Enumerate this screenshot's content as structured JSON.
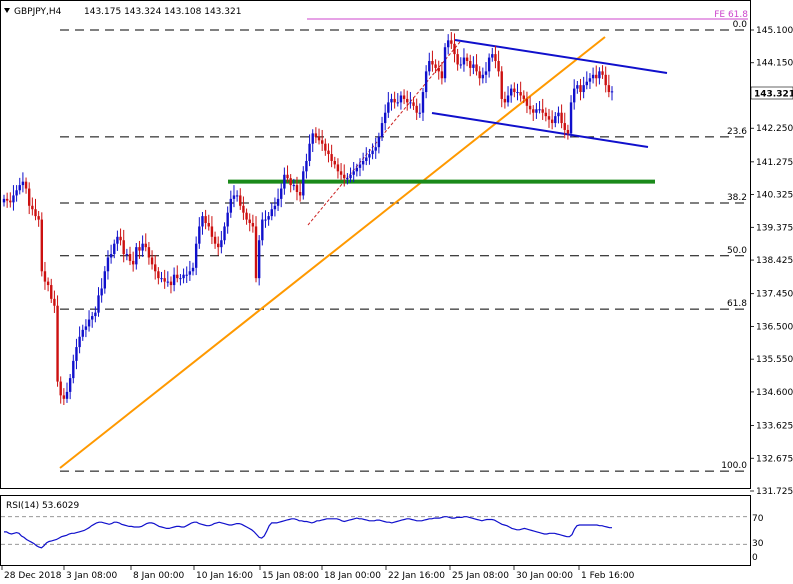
{
  "header": {
    "symbol": "GBPJPY,H4",
    "ohlc": "143.175 143.324 143.108 143.321"
  },
  "price_label": "143.321",
  "rsi": {
    "label": "RSI(14) 53.6029",
    "levels": [
      "70",
      "30",
      "0"
    ],
    "values": [
      48,
      48,
      46,
      45,
      46,
      47,
      46,
      42,
      40,
      37,
      35,
      33,
      31,
      28,
      26,
      25,
      28,
      32,
      34,
      35,
      36,
      37,
      39,
      41,
      42,
      43,
      45,
      46,
      46,
      47,
      48,
      49,
      50,
      52,
      54,
      57,
      59,
      61,
      62,
      62,
      61,
      60,
      59,
      60,
      62,
      62,
      61,
      59,
      58,
      57,
      56,
      56,
      55,
      55,
      55,
      56,
      58,
      60,
      61,
      61,
      60,
      58,
      56,
      55,
      54,
      53,
      53,
      54,
      55,
      56,
      56,
      55,
      55,
      57,
      59,
      61,
      62,
      62,
      60,
      59,
      58,
      57,
      57,
      58,
      60,
      61,
      62,
      61,
      60,
      59,
      58,
      58,
      59,
      60,
      60,
      59,
      57,
      55,
      53,
      51,
      48,
      44,
      40,
      39,
      42,
      49,
      57,
      61,
      61,
      61,
      62,
      63,
      64,
      65,
      66,
      67,
      67,
      66,
      64,
      64,
      63,
      63,
      62,
      61,
      62,
      64,
      64,
      65,
      66,
      67,
      67,
      67,
      67,
      67,
      66,
      64,
      63,
      64,
      65,
      66,
      67,
      68,
      67,
      67,
      66,
      65,
      64,
      64,
      64,
      65,
      65,
      64,
      63,
      62,
      62,
      61,
      62,
      63,
      64,
      65,
      66,
      67,
      67,
      66,
      65,
      64,
      64,
      64,
      65,
      66,
      67,
      67,
      68,
      68,
      68,
      69,
      70,
      70,
      69,
      68,
      68,
      69,
      69,
      69,
      70,
      70,
      69,
      68,
      67,
      66,
      65,
      64,
      65,
      66,
      66,
      66,
      65,
      63,
      61,
      59,
      58,
      57,
      55,
      53,
      52,
      51,
      51,
      52,
      53,
      52,
      51,
      50,
      49,
      48,
      47,
      46,
      45,
      45,
      46,
      46,
      46,
      45,
      44,
      43,
      42,
      41,
      41,
      44,
      52,
      57,
      58,
      58,
      58,
      58,
      58,
      58,
      58,
      58,
      57,
      57,
      56,
      55,
      54,
      54
    ]
  },
  "chart_data": {
    "type": "candlestick",
    "title": "GBPJPY,H4",
    "ylim": [
      131.725,
      145.6
    ],
    "ytick_labels": [
      "145.100",
      "144.150",
      "143.200",
      "142.250",
      "141.275",
      "140.325",
      "139.375",
      "138.425",
      "137.450",
      "136.500",
      "135.550",
      "134.600",
      "133.625",
      "132.675",
      "131.725"
    ],
    "xtick_labels": [
      "28 Dec 2018",
      "3 Jan 08:00",
      "8 Jan 00:00",
      "10 Jan 16:00",
      "15 Jan 08:00",
      "18 Jan 00:00",
      "22 Jan 16:00",
      "25 Jan 08:00",
      "30 Jan 00:00",
      "1 Feb 16:00"
    ],
    "last_price": 143.321,
    "fib_levels": [
      {
        "label": "FE 61.8",
        "price": 145.5,
        "color": "#cc44cc"
      },
      {
        "label": "0.0",
        "price": 145.1,
        "color": "#000000"
      },
      {
        "label": "23.6",
        "price": 142.0,
        "color": "#000000"
      },
      {
        "label": "38.2",
        "price": 140.08,
        "color": "#000000"
      },
      {
        "label": "50.0",
        "price": 138.55,
        "color": "#000000"
      },
      {
        "label": "61.8",
        "price": 137.0,
        "color": "#000000"
      },
      {
        "label": "100.0",
        "price": 132.3,
        "color": "#000000"
      }
    ],
    "support_line": {
      "price": 140.7,
      "color": "#1a8a1a"
    },
    "up_color": "#1010cc",
    "down_color": "#cc1010",
    "close_series": [
      140.2,
      140.15,
      140.1,
      140.3,
      140.45,
      140.6,
      140.7,
      140.5,
      140.0,
      139.9,
      139.7,
      139.6,
      138.1,
      137.8,
      137.7,
      137.3,
      137.1,
      134.9,
      134.5,
      134.4,
      134.6,
      135.0,
      135.5,
      135.9,
      136.2,
      136.4,
      136.5,
      136.7,
      136.8,
      136.9,
      137.4,
      137.6,
      138.1,
      138.5,
      138.6,
      138.9,
      139.1,
      139.0,
      138.6,
      138.6,
      138.4,
      138.3,
      138.8,
      138.7,
      138.9,
      138.8,
      138.5,
      138.3,
      138.1,
      137.9,
      137.9,
      137.8,
      137.8,
      137.7,
      138.0,
      137.9,
      137.9,
      138.0,
      138.0,
      138.1,
      138.2,
      138.9,
      139.4,
      139.7,
      139.5,
      139.4,
      139.1,
      138.9,
      138.8,
      139.0,
      139.4,
      139.8,
      140.2,
      140.3,
      140.3,
      140.0,
      139.8,
      139.6,
      139.5,
      139.4,
      137.9,
      139.0,
      139.6,
      139.6,
      139.7,
      139.9,
      140.0,
      140.2,
      140.5,
      140.9,
      140.8,
      140.6,
      140.6,
      140.4,
      140.3,
      141.0,
      141.3,
      141.8,
      142.1,
      142.0,
      141.9,
      141.8,
      141.6,
      141.5,
      141.3,
      141.2,
      141.0,
      140.9,
      140.8,
      140.8,
      140.9,
      141.0,
      141.1,
      141.2,
      141.3,
      141.4,
      141.5,
      141.6,
      141.7,
      142.0,
      142.4,
      142.7,
      143.0,
      143.1,
      143.0,
      143.0,
      143.2,
      143.1,
      143.0,
      143.0,
      142.9,
      142.7,
      142.7,
      143.3,
      143.9,
      144.2,
      144.1,
      144.0,
      143.9,
      143.7,
      144.6,
      144.8,
      144.7,
      144.4,
      144.1,
      144.1,
      144.3,
      144.2,
      144.0,
      144.1,
      143.9,
      143.7,
      143.8,
      143.9,
      144.3,
      144.4,
      144.2,
      143.9,
      143.1,
      143.0,
      143.2,
      143.4,
      143.3,
      143.3,
      143.2,
      143.1,
      142.9,
      142.8,
      142.7,
      142.8,
      142.8,
      142.7,
      142.6,
      142.5,
      142.4,
      142.6,
      142.7,
      142.4,
      142.2,
      142.1,
      143.0,
      143.4,
      143.5,
      143.3,
      143.5,
      143.6,
      143.7,
      143.8,
      143.7,
      143.9,
      143.8,
      143.5,
      143.3,
      143.32
    ]
  }
}
